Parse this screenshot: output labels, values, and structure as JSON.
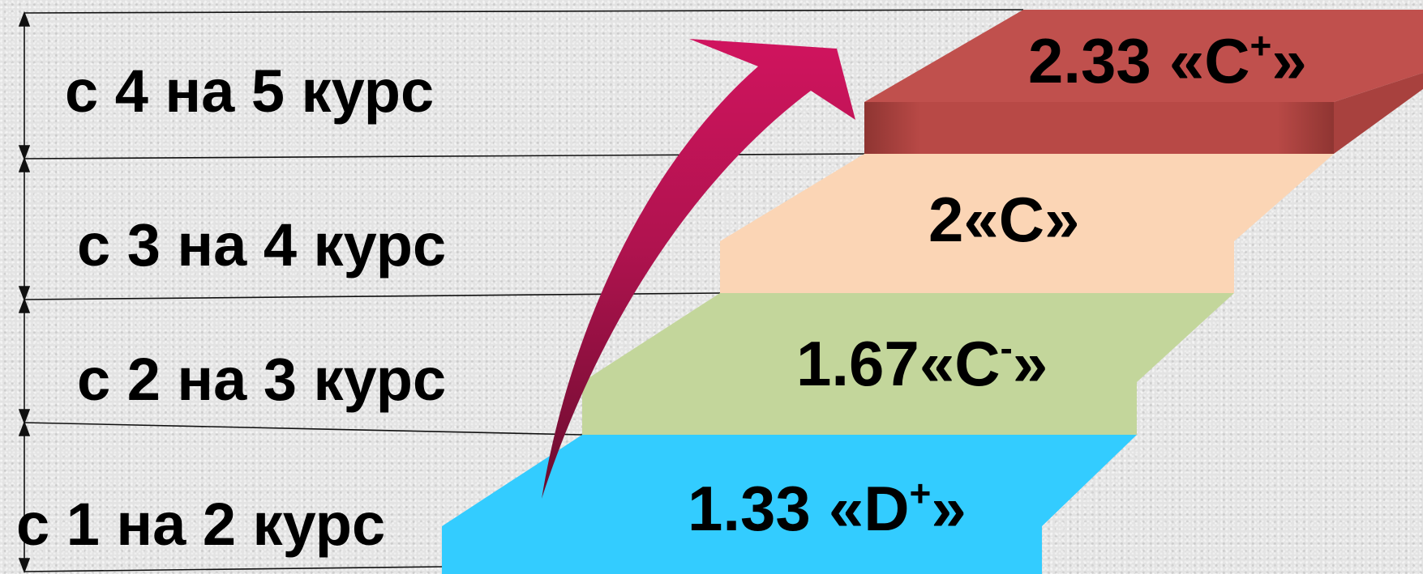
{
  "courses": [
    {
      "label": "с 4 на 5 курс"
    },
    {
      "label": "с 3 на 4 курс"
    },
    {
      "label": "с 2 на 3 курс"
    },
    {
      "label": "с 1 на 2 курс"
    }
  ],
  "steps": [
    {
      "value": "2.33",
      "letter": "«C",
      "modifier": "+",
      "close": "»",
      "color": "#c0504d"
    },
    {
      "value": "2",
      "letter": "«C",
      "modifier": "",
      "close": "»",
      "color": "#fbd5b5"
    },
    {
      "value": "1.67",
      "letter": "«C",
      "modifier": "-",
      "close": "»",
      "color": "#c3d69b"
    },
    {
      "value": "1.33",
      "letter": "«D",
      "modifier": "+",
      "close": "»",
      "color": "#33ccff"
    }
  ],
  "arrow_color": "#d0145e"
}
